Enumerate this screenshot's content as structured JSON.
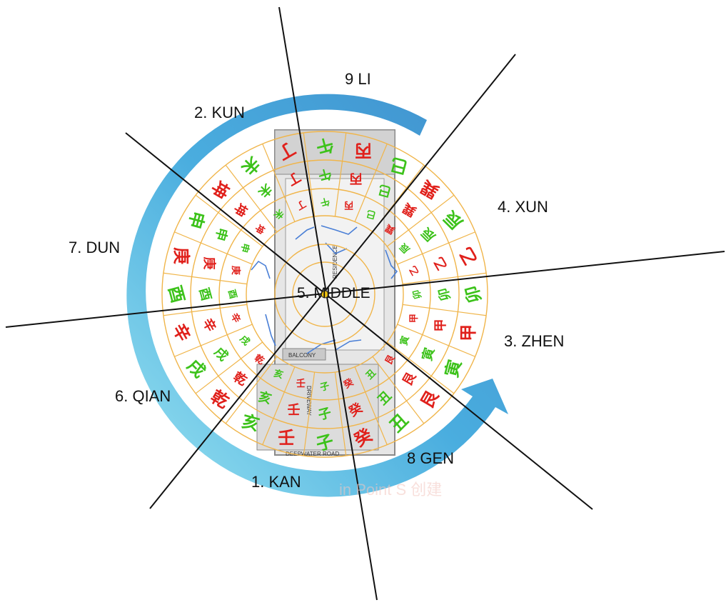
{
  "palaces": [
    {
      "id": "li",
      "label": "9 LI"
    },
    {
      "id": "kun",
      "label": "2. KUN"
    },
    {
      "id": "xun",
      "label": "4. XUN"
    },
    {
      "id": "dun",
      "label": "7. DUN"
    },
    {
      "id": "middle",
      "label": "5. MIDDLE"
    },
    {
      "id": "zhen",
      "label": "3. ZHEN"
    },
    {
      "id": "qian",
      "label": "6. QIAN"
    },
    {
      "id": "gen",
      "label": "8 GEN"
    },
    {
      "id": "kan",
      "label": "1. KAN"
    }
  ],
  "plan": {
    "residence": "RESIDENCE",
    "balcony": "BALCONY",
    "road": "DEEPWATER ROAD",
    "driveway": "DRIVEWAY"
  },
  "watermark": "in Point S 创建",
  "colors": {
    "red": "#e0201b",
    "green": "#3cc21a",
    "ring": "#f0b54a",
    "arrow": "#3aa6dc"
  },
  "rings": {
    "outer": [
      "丙",
      "午",
      "丁",
      "未",
      "坤",
      "申",
      "庚",
      "酉",
      "辛",
      "戌",
      "乾",
      "亥",
      "壬",
      "子",
      "癸",
      "丑",
      "艮",
      "寅",
      "甲",
      "卯",
      "乙",
      "辰",
      "巽",
      "巳"
    ],
    "middle": [
      "丙",
      "午",
      "丁",
      "未",
      "坤",
      "申",
      "庚",
      "酉",
      "辛",
      "戌",
      "乾",
      "亥",
      "壬",
      "子",
      "癸",
      "丑",
      "艮",
      "寅",
      "甲",
      "卯",
      "乙",
      "辰",
      "巽",
      "巳"
    ],
    "inner": [
      "丙",
      "午",
      "丁",
      "未",
      "坤",
      "申",
      "庚",
      "酉",
      "辛",
      "戌",
      "乾",
      "亥",
      "壬",
      "子",
      "癸",
      "丑",
      "艮",
      "寅",
      "甲",
      "卯",
      "乙",
      "辰",
      "巽",
      "巳"
    ]
  }
}
